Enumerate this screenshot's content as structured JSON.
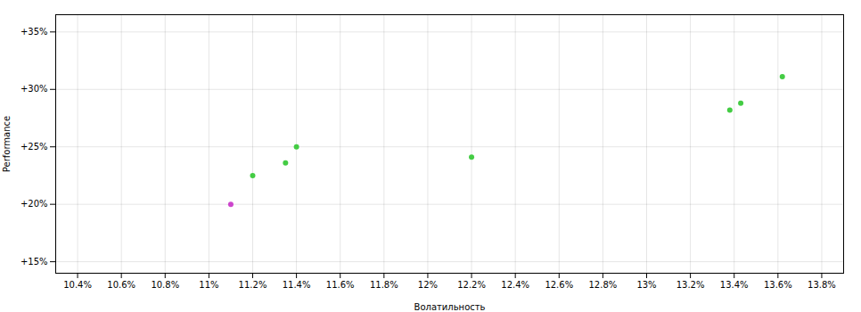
{
  "chart_data": {
    "type": "scatter",
    "x": [
      11.1,
      11.2,
      11.35,
      11.4,
      12.2,
      13.38,
      13.43,
      13.62
    ],
    "values": [
      20.0,
      22.5,
      23.6,
      25.0,
      24.1,
      28.2,
      28.8,
      31.1
    ],
    "colors": [
      "#cc44cc",
      "#44cc44",
      "#44cc44",
      "#44cc44",
      "#44cc44",
      "#44cc44",
      "#44cc44",
      "#44cc44"
    ],
    "xlim": [
      10.3,
      13.9
    ],
    "ylim": [
      14.0,
      36.5
    ],
    "xticks": [
      {
        "value": 10.4,
        "label": "10.4%"
      },
      {
        "value": 10.6,
        "label": "10.6%"
      },
      {
        "value": 10.8,
        "label": "10.8%"
      },
      {
        "value": 11.0,
        "label": "11%"
      },
      {
        "value": 11.2,
        "label": "11.2%"
      },
      {
        "value": 11.4,
        "label": "11.4%"
      },
      {
        "value": 11.6,
        "label": "11.6%"
      },
      {
        "value": 11.8,
        "label": "11.8%"
      },
      {
        "value": 12.0,
        "label": "12%"
      },
      {
        "value": 12.2,
        "label": "12.2%"
      },
      {
        "value": 12.4,
        "label": "12.4%"
      },
      {
        "value": 12.6,
        "label": "12.6%"
      },
      {
        "value": 12.8,
        "label": "12.8%"
      },
      {
        "value": 13.0,
        "label": "13%"
      },
      {
        "value": 13.2,
        "label": "13.2%"
      },
      {
        "value": 13.4,
        "label": "13.4%"
      },
      {
        "value": 13.6,
        "label": "13.6%"
      },
      {
        "value": 13.8,
        "label": "13.8%"
      }
    ],
    "yticks": [
      {
        "value": 15,
        "label": "+15%"
      },
      {
        "value": 20,
        "label": "+20%"
      },
      {
        "value": 25,
        "label": "+25%"
      },
      {
        "value": 30,
        "label": "+30%"
      },
      {
        "value": 35,
        "label": "+35%"
      }
    ],
    "xlabel": "Волатильность",
    "ylabel": "Performance",
    "grid": true
  }
}
